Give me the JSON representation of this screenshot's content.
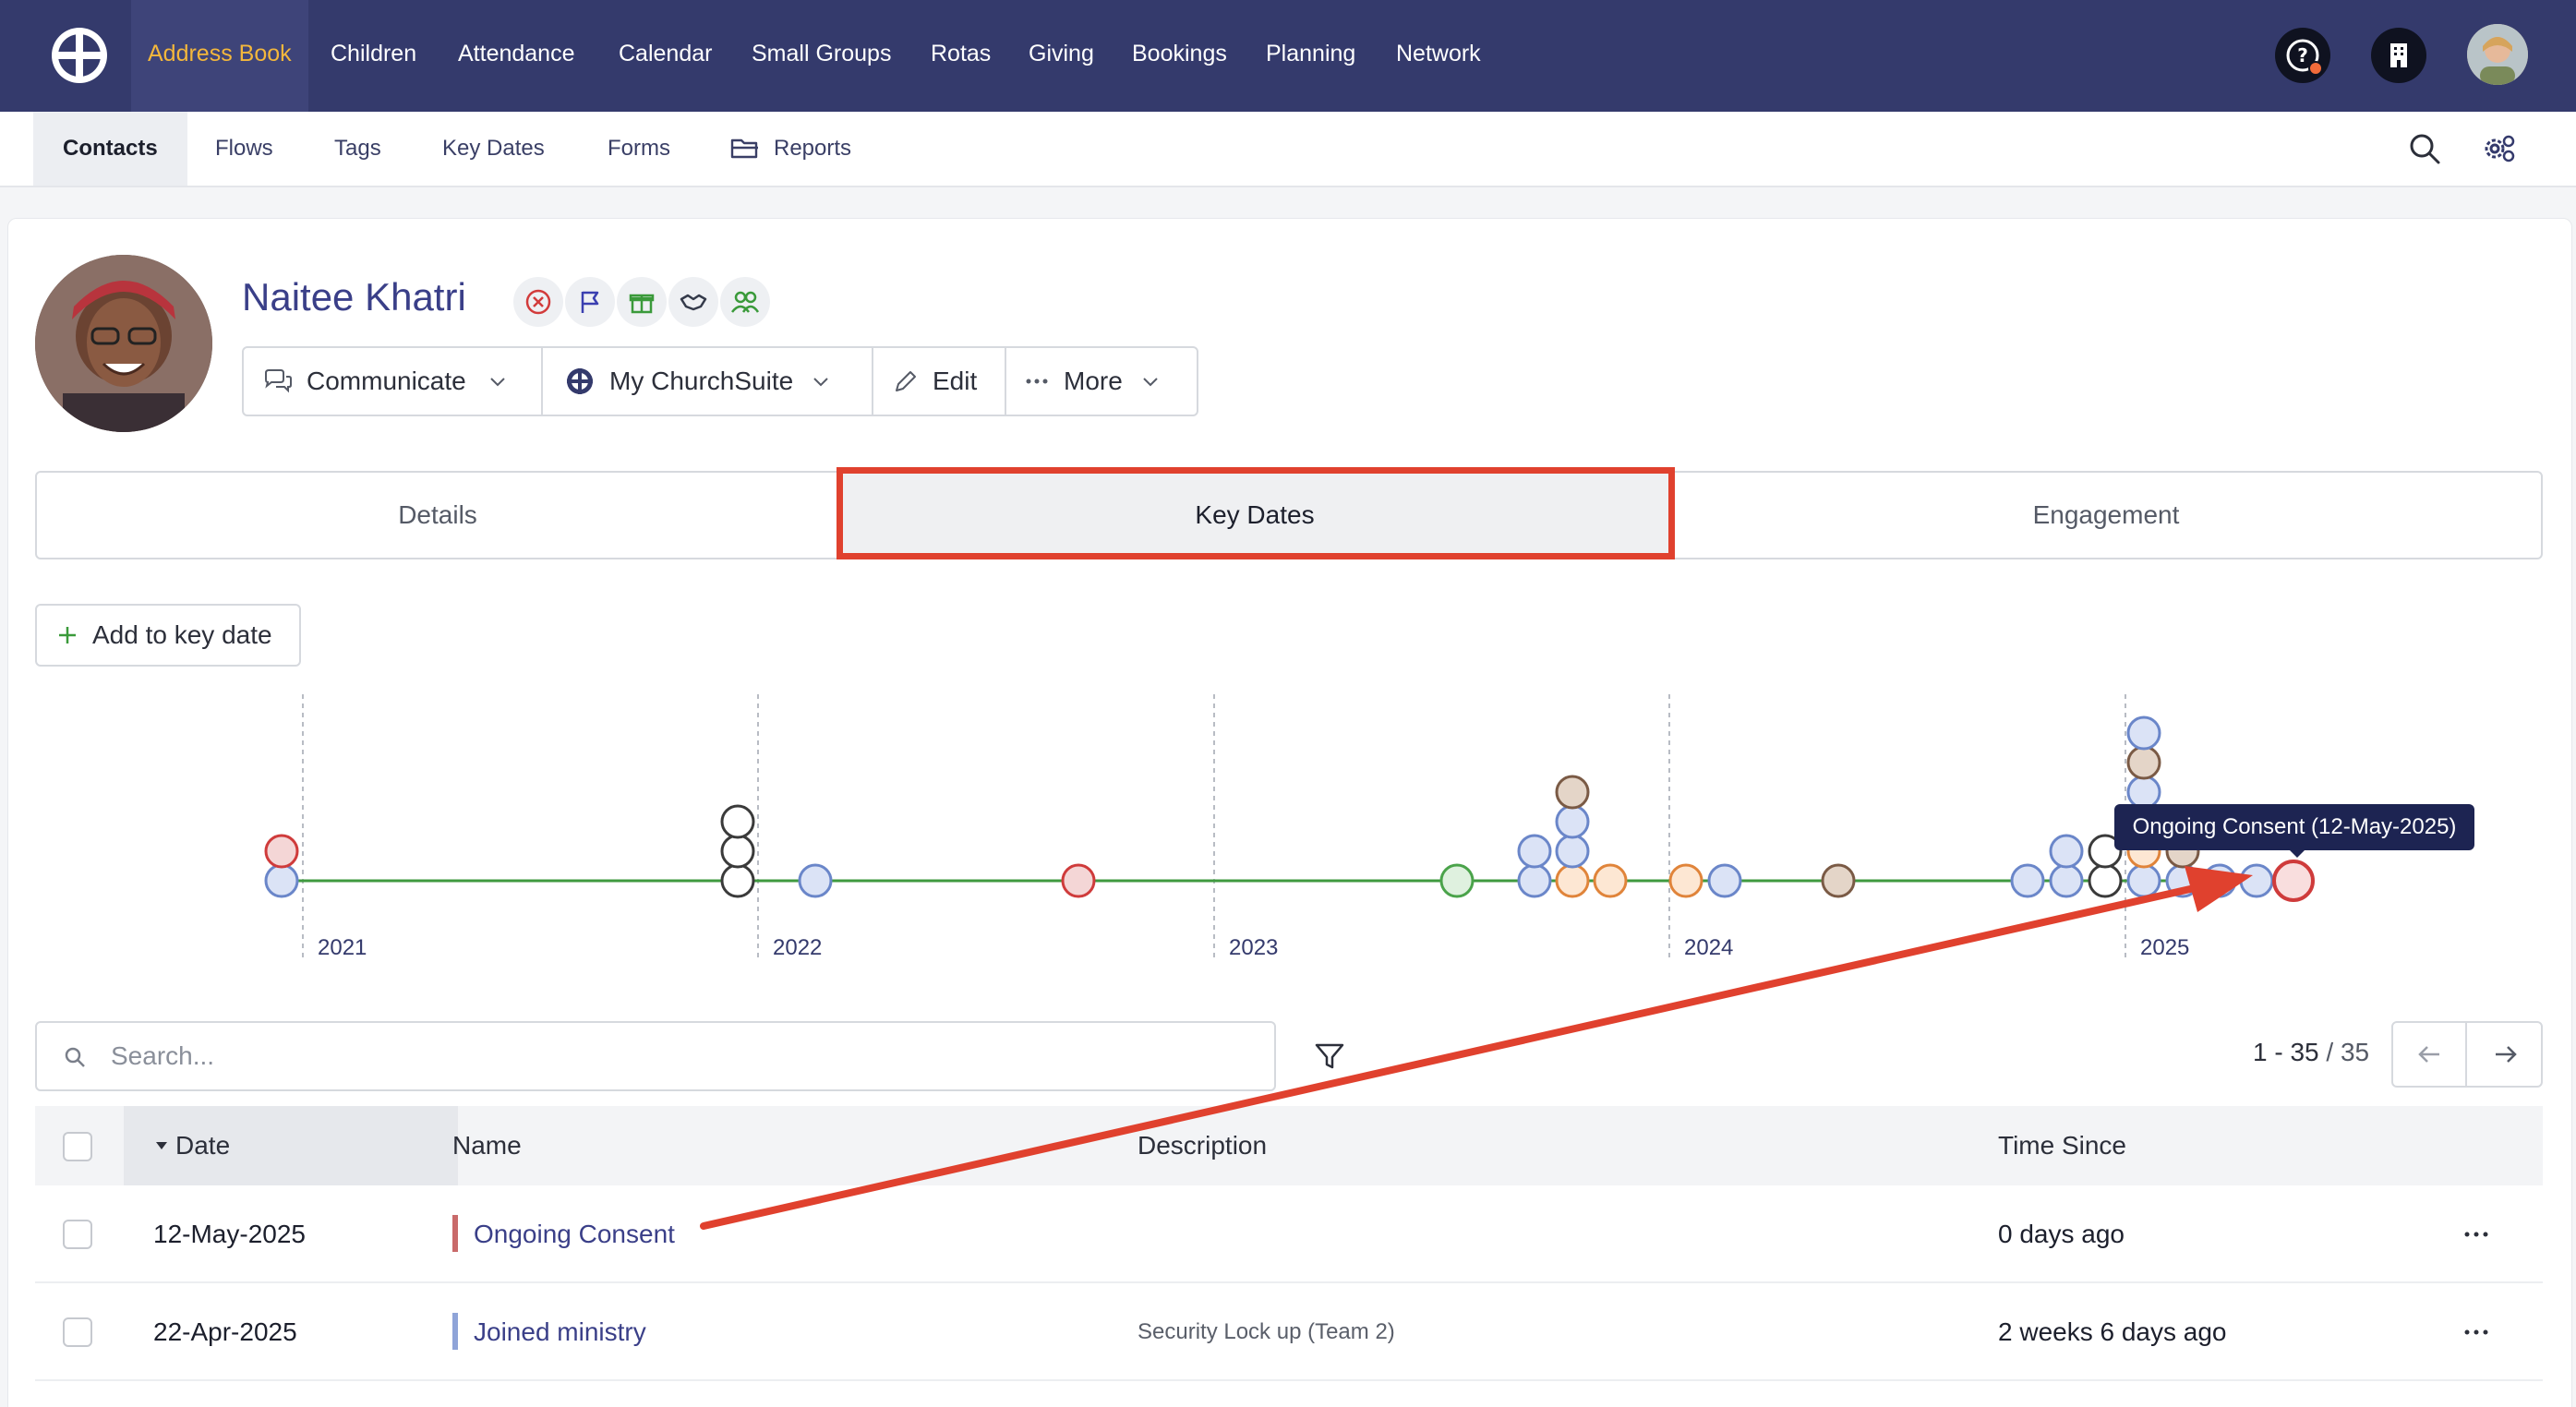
{
  "topnav": {
    "items": [
      {
        "label": "Address Book",
        "active": true
      },
      {
        "label": "Children"
      },
      {
        "label": "Attendance"
      },
      {
        "label": "Calendar"
      },
      {
        "label": "Small Groups"
      },
      {
        "label": "Rotas"
      },
      {
        "label": "Giving"
      },
      {
        "label": "Bookings"
      },
      {
        "label": "Planning"
      },
      {
        "label": "Network"
      }
    ],
    "icons": [
      "help-icon",
      "building-icon",
      "user-avatar"
    ],
    "accent": "#f3b73c",
    "bg": "#343a6c"
  },
  "subnav": {
    "items": [
      {
        "label": "Contacts",
        "active": true
      },
      {
        "label": "Flows"
      },
      {
        "label": "Tags"
      },
      {
        "label": "Key Dates"
      },
      {
        "label": "Forms"
      },
      {
        "label": "Reports",
        "icon": "folder-icon"
      }
    ],
    "icons": [
      "search-icon",
      "settings-icon"
    ]
  },
  "profile": {
    "name": "Naitee Khatri",
    "badges": [
      "cancel-icon",
      "flag-icon",
      "gift-icon",
      "handshake-icon",
      "users-icon"
    ]
  },
  "actions": {
    "communicate": "Communicate",
    "mychurchsuite": "My ChurchSuite",
    "edit": "Edit",
    "more": "More"
  },
  "tabs": [
    {
      "label": "Details"
    },
    {
      "label": "Key Dates",
      "active": true
    },
    {
      "label": "Engagement"
    }
  ],
  "add_key_date": "Add to key date",
  "timeline": {
    "years": [
      "2021",
      "2022",
      "2023",
      "2024",
      "2025"
    ],
    "tooltip": "Ongoing Consent (12-May-2025)",
    "line_color": "#3f9a3f"
  },
  "search": {
    "placeholder": "Search..."
  },
  "pager": {
    "range": "1 - 35",
    "total": "/ 35"
  },
  "table": {
    "columns": [
      "Date",
      "Name",
      "Description",
      "Time Since"
    ],
    "rows": [
      {
        "date": "12-May-2025",
        "name": "Ongoing Consent",
        "description": "",
        "since": "0 days ago",
        "color": "#c96a6a"
      },
      {
        "date": "22-Apr-2025",
        "name": "Joined ministry",
        "description": "Security Lock up (Team 2)",
        "since": "2 weeks 6 days ago",
        "color": "#8fa4d8"
      }
    ]
  }
}
